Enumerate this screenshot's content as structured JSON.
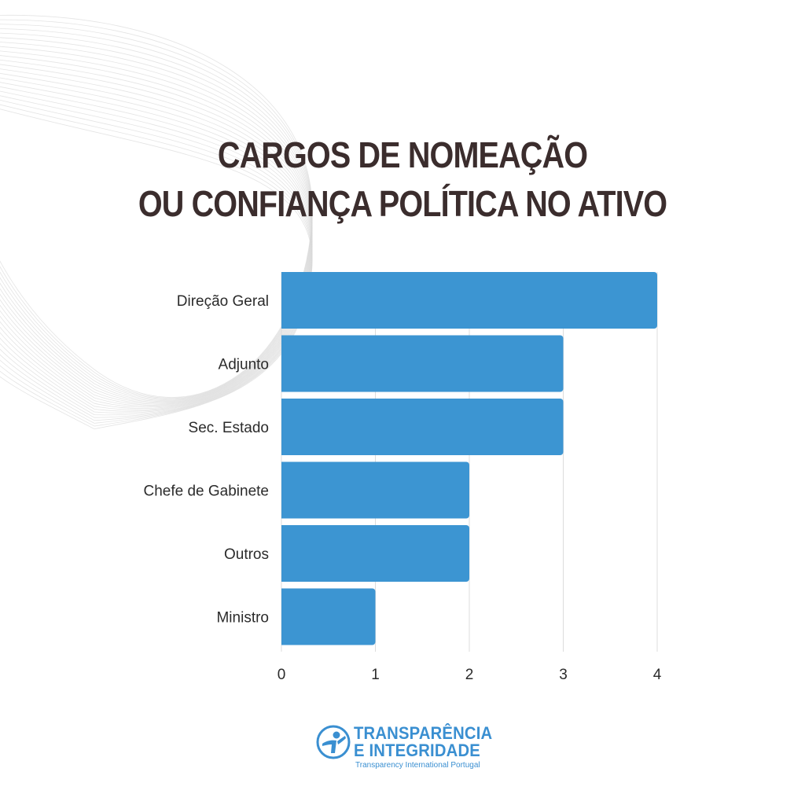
{
  "title": {
    "line1": "CARGOS DE NOMEAÇÃO",
    "line2": "OU CONFIANÇA POLÍTICA NO ATIVO"
  },
  "chart_data": {
    "type": "bar",
    "orientation": "horizontal",
    "categories": [
      "Direção Geral",
      "Adjunto",
      "Sec. Estado",
      "Chefe de Gabinete",
      "Outros",
      "Ministro"
    ],
    "values": [
      4,
      3,
      3,
      2,
      2,
      1
    ],
    "xlim": [
      0,
      4
    ],
    "xticks": [
      "0",
      "1",
      "2",
      "3",
      "4"
    ],
    "grid": "vertical",
    "bar_color": "#3c95d2",
    "grid_color": "#dcdcdc"
  },
  "logo": {
    "line1": "TRANSPARÊNCIA",
    "line2": "E INTEGRIDADE",
    "subtitle": "Transparency International Portugal",
    "color": "#3a8fd1"
  }
}
